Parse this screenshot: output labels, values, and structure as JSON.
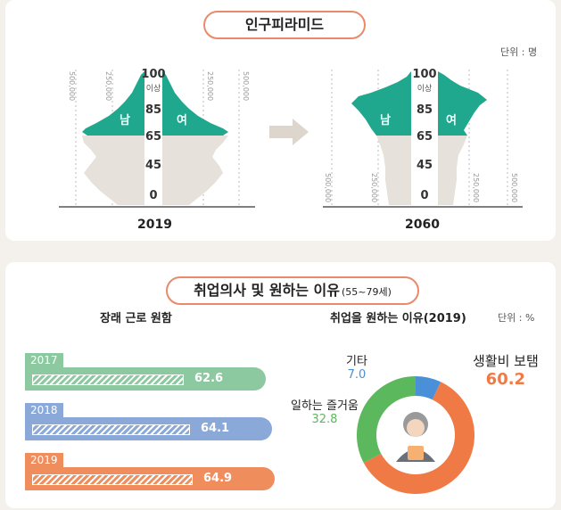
{
  "pyramid": {
    "title": "인구피라미드",
    "unit": "단위 : 명",
    "left_year": "2019",
    "right_year": "2060",
    "male_label": "남",
    "female_label": "여",
    "age_top": "100",
    "age_top_suffix": "이상",
    "age_ticks": [
      "85",
      "65",
      "45",
      "0"
    ],
    "scale_labels": [
      "500,000",
      "250,000",
      "250,000",
      "500,000"
    ],
    "arrow_icon": "right-arrow-icon"
  },
  "employment": {
    "title": "취업의사 및 원하는 이유",
    "title_range": "(55~79세)",
    "left_heading": "장래 근로 원함",
    "right_heading": "취업을 원하는 이유(2019)",
    "right_unit": "단위 : %"
  },
  "chart_data": [
    {
      "type": "bar",
      "title": "장래 근로 원함",
      "categories": [
        "2017",
        "2018",
        "2019"
      ],
      "values": [
        62.6,
        64.1,
        64.9
      ],
      "colors": [
        "#8cc9a0",
        "#8aa8d8",
        "#ef8d5d"
      ]
    },
    {
      "type": "pie",
      "title": "취업을 원하는 이유(2019)",
      "unit": "%",
      "labels": [
        "생활비 보탬",
        "일하는 즐거움",
        "기타"
      ],
      "values": [
        60.2,
        32.8,
        7.0
      ],
      "value_labels": [
        "60.2",
        "32.8",
        "7.0"
      ],
      "colors": [
        "#f07a45",
        "#5cb85c",
        "#4a90d9"
      ]
    }
  ]
}
